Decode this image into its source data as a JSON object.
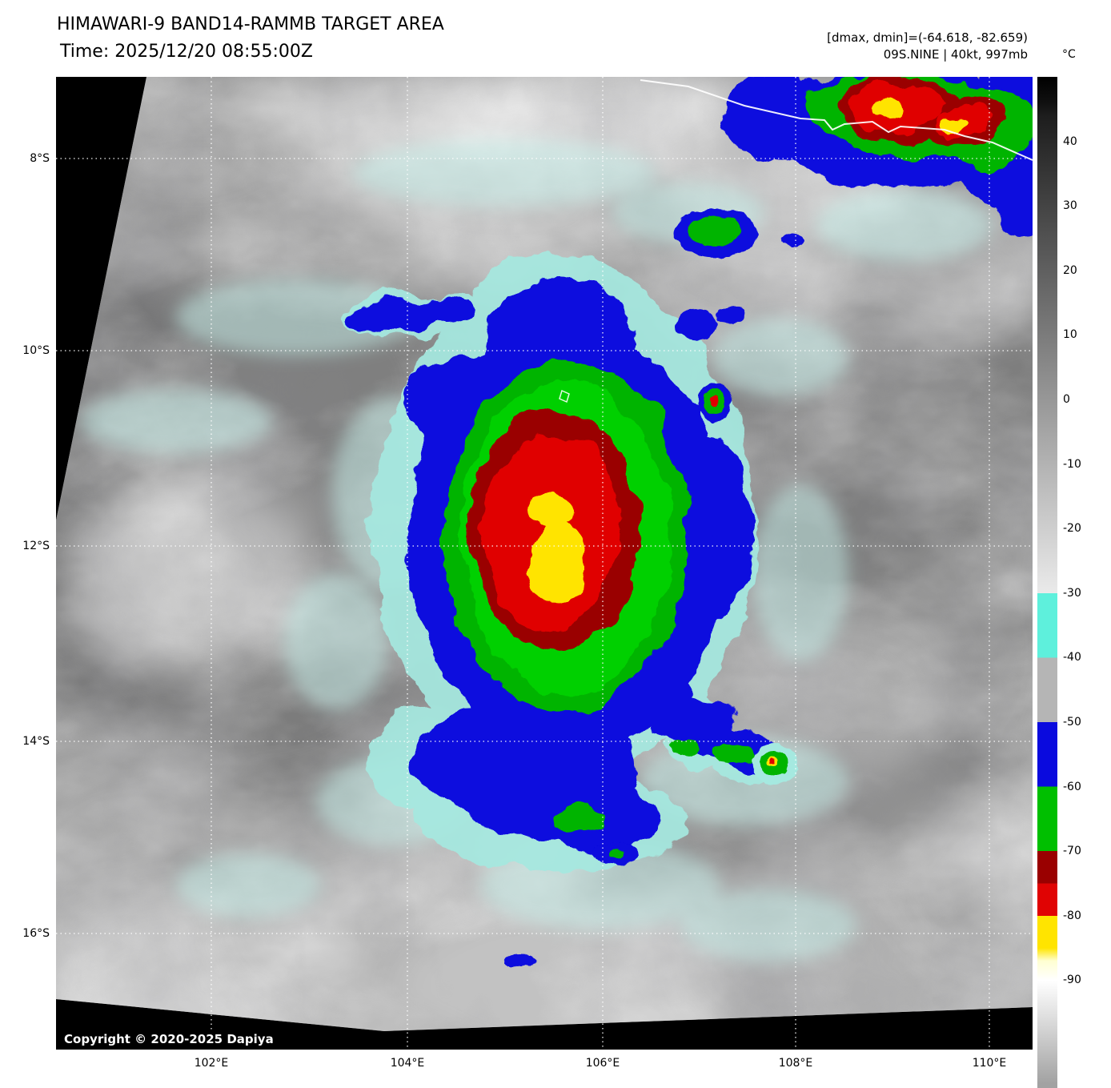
{
  "header": {
    "title": "HIMAWARI-9 BAND14-RAMMB TARGET AREA",
    "time": "Time: 2025/12/20 08:55:00Z",
    "dmax_dmin": "[dmax, dmin]=(-64.618, -82.659)",
    "storm_info": "09S.NINE | 40kt, 997mb"
  },
  "colorbar": {
    "unit": "°C",
    "ticks": [
      "40",
      "30",
      "20",
      "10",
      "0",
      "-10",
      "-20",
      "-30",
      "-40",
      "-50",
      "-60",
      "-70",
      "-80",
      "-90"
    ],
    "gradient": [
      {
        "t": 50,
        "color": "#000000"
      },
      {
        "t": 46,
        "color": "#101010"
      },
      {
        "t": 44,
        "color": "#1d1d1d"
      },
      {
        "t": -30,
        "color": "#eaeaea"
      },
      {
        "t": -30,
        "color": "#5ef0dc"
      },
      {
        "t": -40,
        "color": "#5ef0dc"
      },
      {
        "t": -40,
        "color": "#b5b5b5"
      },
      {
        "t": -50,
        "color": "#b5b5b5"
      },
      {
        "t": -50,
        "color": "#0a0ade"
      },
      {
        "t": -60,
        "color": "#0a0ade"
      },
      {
        "t": -60,
        "color": "#00bf00"
      },
      {
        "t": -70,
        "color": "#00bf00"
      },
      {
        "t": -70,
        "color": "#9a0000"
      },
      {
        "t": -75,
        "color": "#9a0000"
      },
      {
        "t": -75,
        "color": "#e00303"
      },
      {
        "t": -80,
        "color": "#e00303"
      },
      {
        "t": -80,
        "color": "#ffe400"
      },
      {
        "t": -85,
        "color": "#ffe400"
      },
      {
        "t": -87,
        "color": "#ffffd2"
      },
      {
        "t": -90,
        "color": "#ffffff"
      },
      {
        "t": -93,
        "color": "#eeeeee"
      },
      {
        "t": -106,
        "color": "#a2a2a2"
      }
    ]
  },
  "map": {
    "lat_labels": [
      "8°S",
      "10°S",
      "12°S",
      "14°S",
      "16°S"
    ],
    "lon_labels": [
      "102°E",
      "104°E",
      "106°E",
      "108°E",
      "110°E"
    ],
    "copyright": "Copyright © 2020-2025 Dapiya"
  },
  "colors": {
    "cyan": "#5ef0dc",
    "cyan_pale": "#a5e9e0",
    "cyan_wisp": "#c6f0ea",
    "blue": "#0a0ade",
    "green": "#00b400",
    "green_bright": "#00d000",
    "dark_red": "#9a0000",
    "red": "#e00303",
    "yellow": "#ffe400"
  }
}
